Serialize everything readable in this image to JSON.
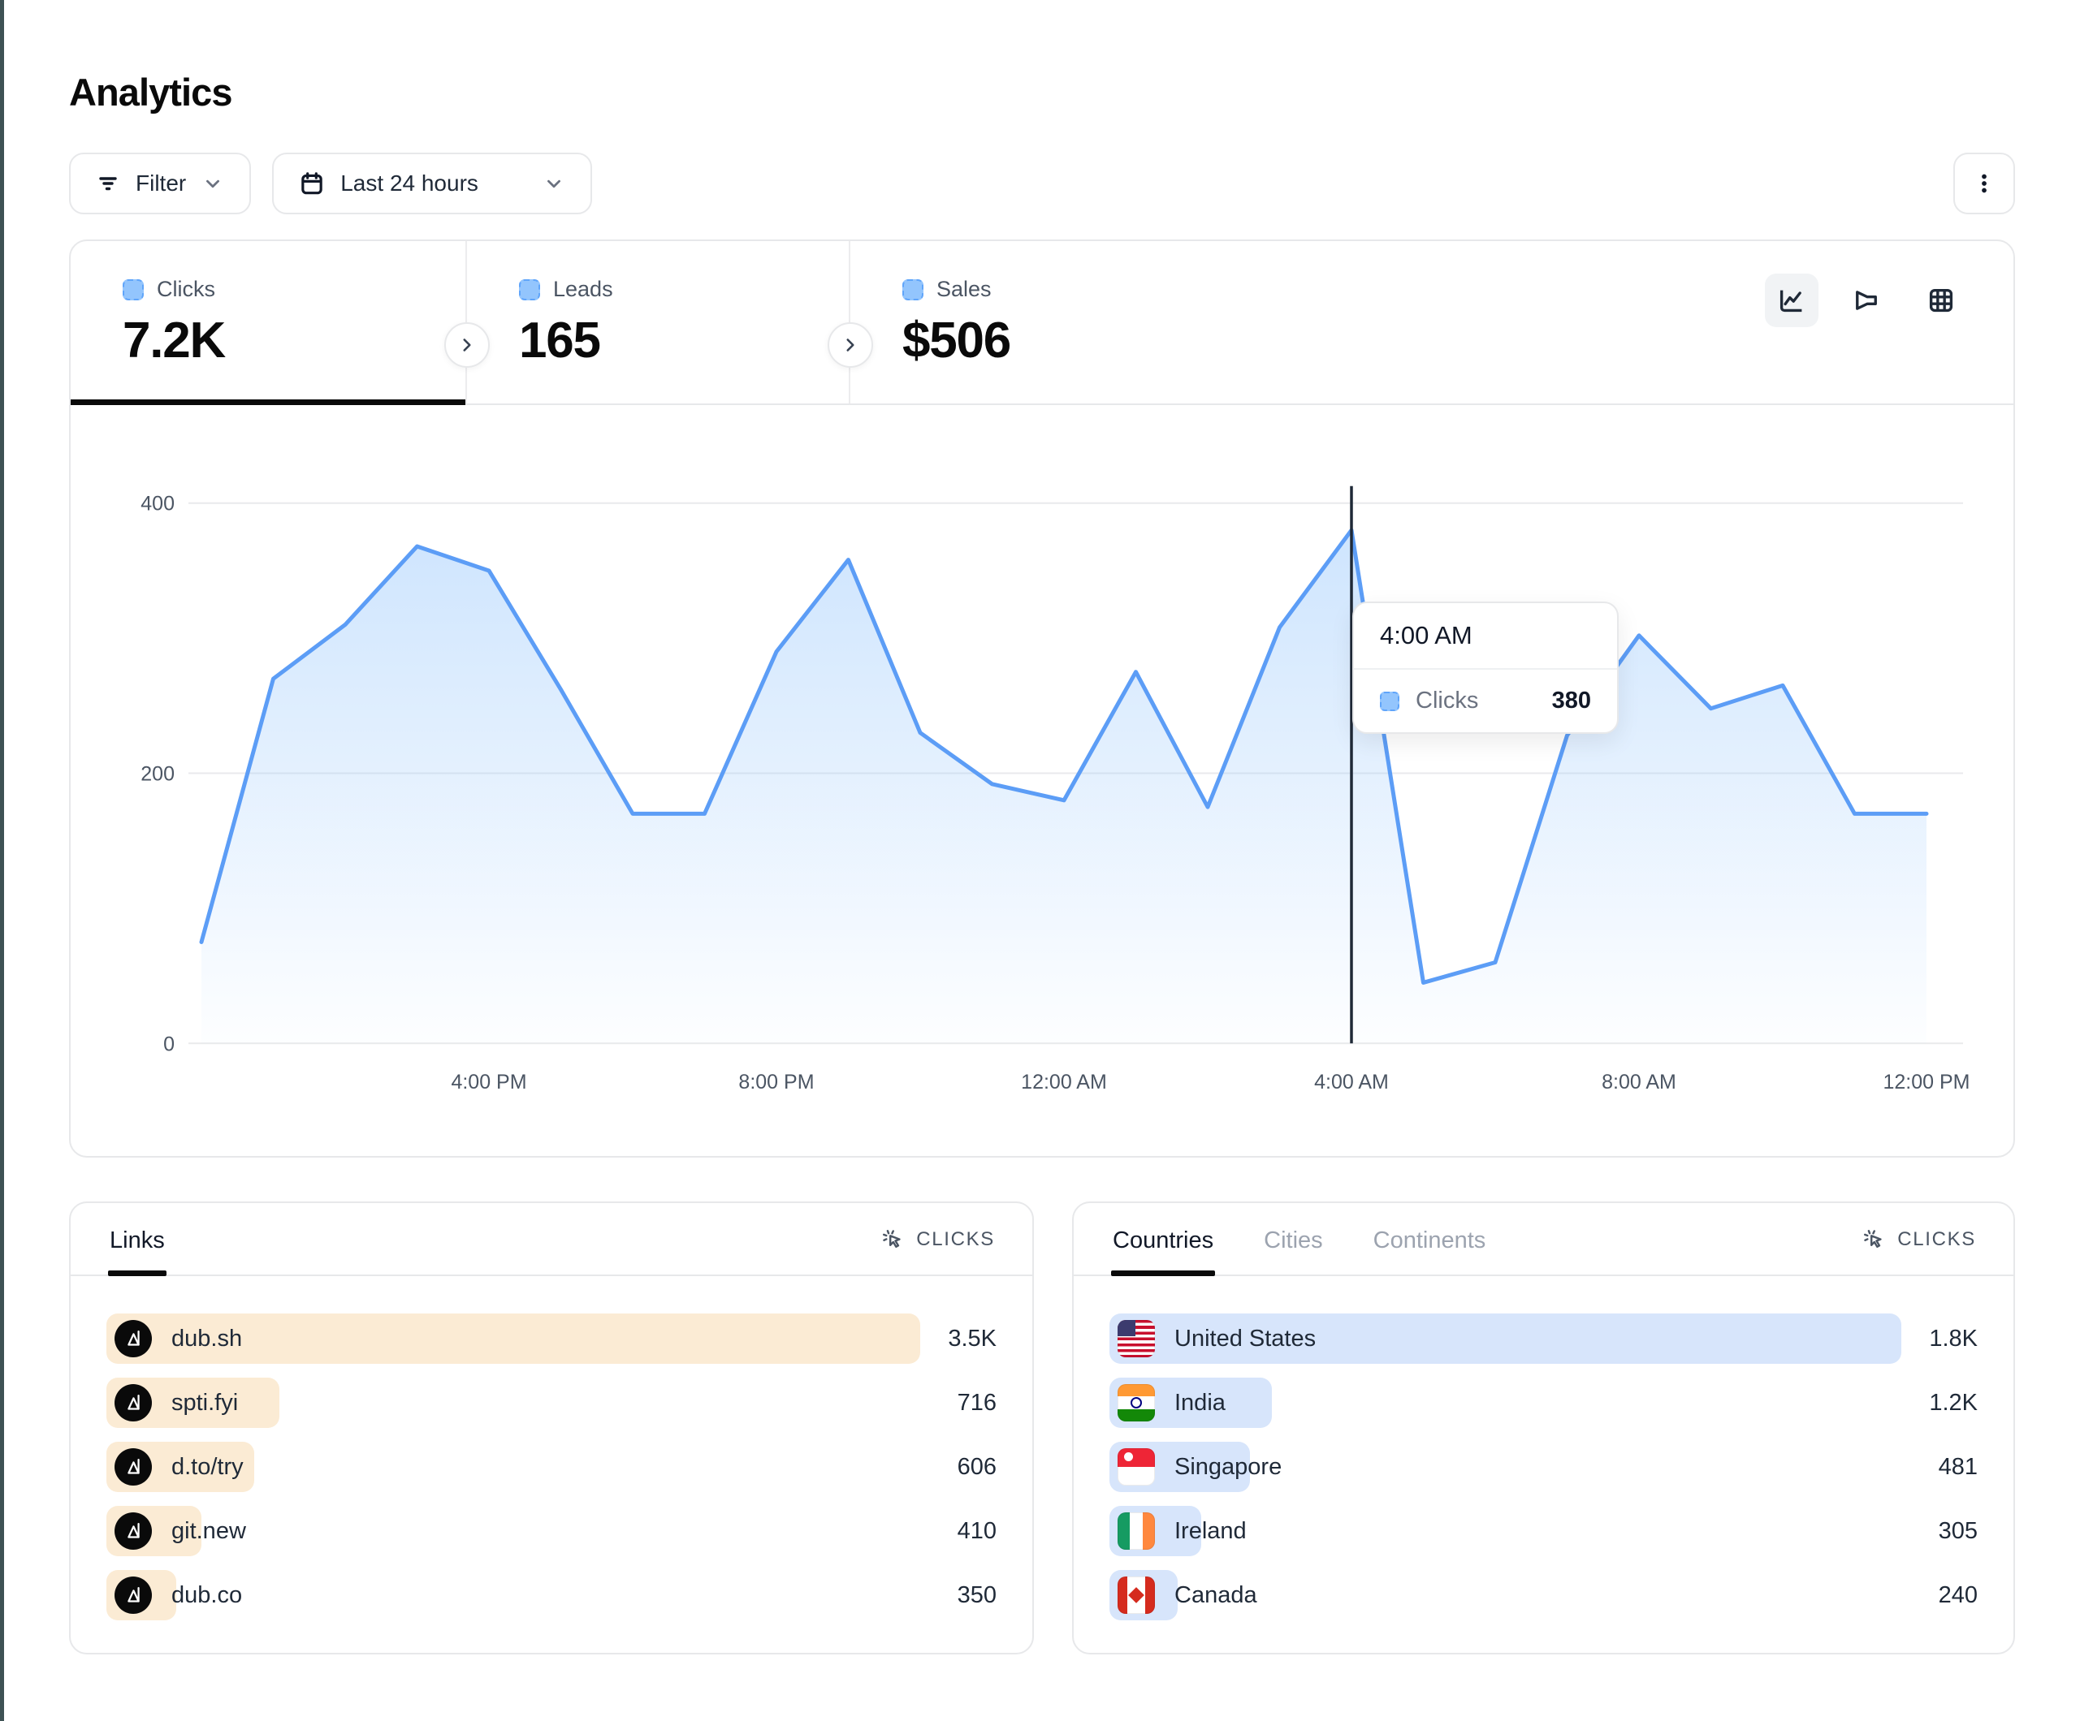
{
  "page": {
    "title": "Analytics"
  },
  "toolbar": {
    "filter_label": "Filter",
    "date_range_label": "Last 24 hours"
  },
  "stats": {
    "tabs": [
      {
        "label": "Clicks",
        "value": "7.2K",
        "active": true
      },
      {
        "label": "Leads",
        "value": "165",
        "active": false
      },
      {
        "label": "Sales",
        "value": "$506",
        "active": false
      }
    ]
  },
  "chart_data": {
    "type": "area",
    "series_name": "Clicks",
    "categories": [
      "12:00 PM",
      "1:00 PM",
      "2:00 PM",
      "3:00 PM",
      "4:00 PM",
      "5:00 PM",
      "6:00 PM",
      "7:00 PM",
      "8:00 PM",
      "9:00 PM",
      "10:00 PM",
      "11:00 PM",
      "12:00 AM",
      "1:00 AM",
      "2:00 AM",
      "3:00 AM",
      "4:00 AM",
      "5:00 AM",
      "6:00 AM",
      "7:00 AM",
      "8:00 AM",
      "9:00 AM",
      "10:00 AM",
      "11:00 AM",
      "12:00 PM"
    ],
    "series": [
      {
        "name": "Clicks",
        "values": [
          75,
          270,
          310,
          368,
          350,
          262,
          170,
          170,
          290,
          358,
          230,
          192,
          180,
          275,
          175,
          308,
          380,
          45,
          60,
          228,
          302,
          248,
          265,
          170,
          170
        ]
      }
    ],
    "x_tick_labels": [
      "4:00 PM",
      "8:00 PM",
      "12:00 AM",
      "4:00 AM",
      "8:00 AM",
      "12:00 PM"
    ],
    "x_tick_indices": [
      4,
      8,
      12,
      16,
      20,
      24
    ],
    "y_ticks": [
      0,
      200,
      400
    ],
    "ylim": [
      0,
      440
    ],
    "grid": "horizontal",
    "legend": "none",
    "hover": {
      "index": 16,
      "label": "4:00 AM",
      "series": "Clicks",
      "value": "380"
    }
  },
  "links_panel": {
    "tab_label": "Links",
    "metric_label": "CLICKS",
    "rows": [
      {
        "label": "dub.sh",
        "value": "3.5K",
        "bar_pct": 100
      },
      {
        "label": "spti.fyi",
        "value": "716",
        "bar_pct": 21
      },
      {
        "label": "d.to/try",
        "value": "606",
        "bar_pct": 18
      },
      {
        "label": "git.new",
        "value": "410",
        "bar_pct": 11.5
      },
      {
        "label": "dub.co",
        "value": "350",
        "bar_pct": 8.5
      }
    ]
  },
  "geo_panel": {
    "tabs": [
      {
        "label": "Countries",
        "active": true
      },
      {
        "label": "Cities",
        "active": false
      },
      {
        "label": "Continents",
        "active": false
      }
    ],
    "metric_label": "CLICKS",
    "rows": [
      {
        "label": "United States",
        "value": "1.8K",
        "bar_pct": 100,
        "flag": "us"
      },
      {
        "label": "India",
        "value": "1.2K",
        "bar_pct": 20.5,
        "flag": "in"
      },
      {
        "label": "Singapore",
        "value": "481",
        "bar_pct": 17.5,
        "flag": "sg"
      },
      {
        "label": "Ireland",
        "value": "305",
        "bar_pct": 11.5,
        "flag": "ie"
      },
      {
        "label": "Canada",
        "value": "240",
        "bar_pct": 8.5,
        "flag": "ca"
      }
    ]
  },
  "colors": {
    "accent_line": "#5c9df6",
    "area_top": "rgba(147,197,253,0.45)",
    "area_bottom": "rgba(147,197,253,0.02)",
    "indicator_fill": "#93c5fd",
    "indicator_border": "#60a5fa",
    "links_bar": "#fbebd4",
    "geo_bar": "#d7e5fb",
    "gridline": "#e9eaec",
    "crosshair": "#1f2937",
    "edge_strip": "#3e5254"
  }
}
